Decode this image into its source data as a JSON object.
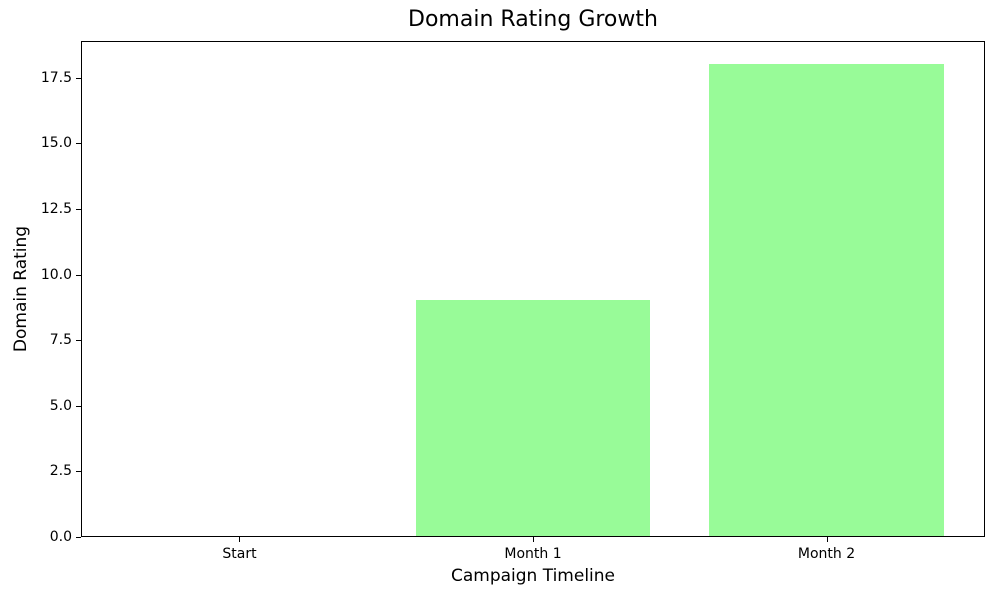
{
  "chart_data": {
    "type": "bar",
    "title": "Domain Rating Growth",
    "xlabel": "Campaign Timeline",
    "ylabel": "Domain Rating",
    "categories": [
      "Start",
      "Month 1",
      "Month 2"
    ],
    "values": [
      0,
      9,
      18
    ],
    "yticks": [
      0.0,
      2.5,
      5.0,
      7.5,
      10.0,
      12.5,
      15.0,
      17.5
    ],
    "ytick_labels": [
      "0.0",
      "2.5",
      "5.0",
      "7.5",
      "10.0",
      "12.5",
      "15.0",
      "17.5"
    ],
    "ylim": [
      0,
      18.9
    ],
    "xlim": [
      -0.54,
      2.54
    ],
    "bar_width_units": 0.8,
    "bar_color": "#98fb98",
    "axis_color": "#000000",
    "background_color": "#ffffff",
    "grid": false,
    "legend": null
  }
}
